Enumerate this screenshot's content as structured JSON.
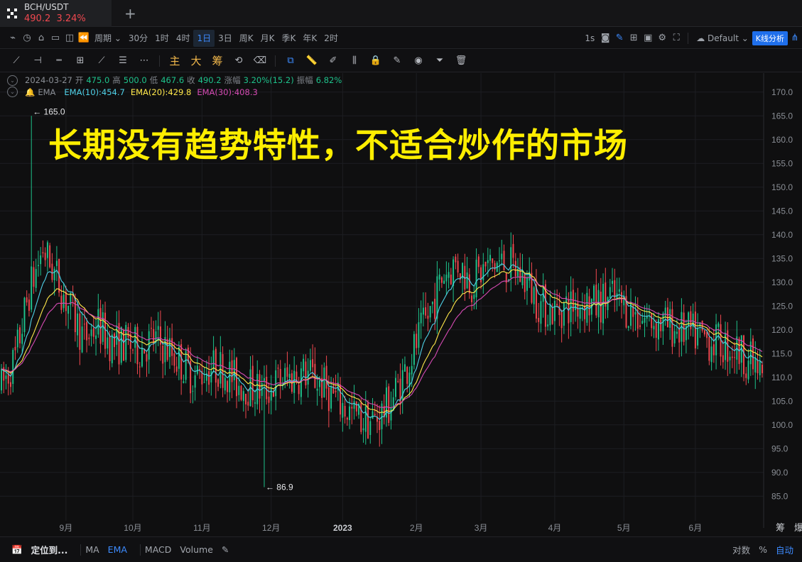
{
  "tab": {
    "symbol": "BCH/USDT",
    "price": "490.2",
    "change": "3.24%",
    "add": "+"
  },
  "toolbar": {
    "period_label": "周期",
    "intervals": [
      "30分",
      "1时",
      "4时",
      "1日",
      "3日",
      "周K",
      "月K",
      "季K",
      "年K",
      "2时"
    ],
    "active_interval": "1日",
    "refresh": "1s",
    "theme": "Default",
    "analysis_button": "K线分析"
  },
  "drawtools": {
    "main": "主",
    "big": "大",
    "chips": "筹"
  },
  "info": {
    "date": "2024-03-27",
    "open_label": "开",
    "open": "475.0",
    "high_label": "高",
    "high": "500.0",
    "low_label": "低",
    "low": "467.6",
    "close_label": "收",
    "close": "490.2",
    "change_label": "涨幅",
    "change": "3.20%(15.2)",
    "amp_label": "振幅",
    "amp": "6.82%"
  },
  "indicators": {
    "name": "EMA",
    "ema10": "EMA(10):454.7",
    "ema20": "EMA(20):429.8",
    "ema30": "EMA(30):408.3"
  },
  "headline": "长期没有趋势特性，不适合炒作的市场",
  "colors": {
    "up": "#1ec28b",
    "down": "#f0484f",
    "ema10": "#4fd1e8",
    "ema20": "#ffe84a",
    "ema30": "#d64bb4",
    "grid": "#1d1e22",
    "axis_text": "#8a8e95"
  },
  "chart_data": {
    "type": "candlestick",
    "ylim": [
      82.5,
      172.5
    ],
    "yticks": [
      170.0,
      165.0,
      160.0,
      155.0,
      150.0,
      145.0,
      140.0,
      135.0,
      130.0,
      125.0,
      120.0,
      115.0,
      110.0,
      105.0,
      100.0,
      95.0,
      90.0,
      85.0
    ],
    "x_months": [
      "9月",
      "10月",
      "11月",
      "12月",
      "2023",
      "2月",
      "3月",
      "4月",
      "5月",
      "6月"
    ],
    "month_start_index": [
      28,
      57,
      87,
      117,
      148,
      180,
      208,
      240,
      270,
      301
    ],
    "annotations": [
      {
        "text": "← 165.0",
        "value": 165.0,
        "index": 13
      },
      {
        "text": "← 86.9",
        "value": 86.9,
        "index": 114
      }
    ],
    "right_axis_labels": [
      "筹",
      "爆"
    ],
    "ema_path": [
      [
        0,
        108
      ],
      [
        6,
        114
      ],
      [
        12,
        128
      ],
      [
        18,
        137
      ],
      [
        24,
        131
      ],
      [
        30,
        124
      ],
      [
        36,
        118
      ],
      [
        42,
        121
      ],
      [
        48,
        117
      ],
      [
        54,
        117
      ],
      [
        60,
        116
      ],
      [
        66,
        118
      ],
      [
        72,
        116
      ],
      [
        78,
        113
      ],
      [
        84,
        110
      ],
      [
        90,
        112
      ],
      [
        96,
        112
      ],
      [
        102,
        109
      ],
      [
        108,
        108
      ],
      [
        114,
        107
      ],
      [
        120,
        109
      ],
      [
        126,
        110
      ],
      [
        132,
        111
      ],
      [
        138,
        109
      ],
      [
        144,
        106
      ],
      [
        150,
        103
      ],
      [
        156,
        101
      ],
      [
        162,
        101
      ],
      [
        168,
        104
      ],
      [
        174,
        110
      ],
      [
        180,
        117
      ],
      [
        186,
        124
      ],
      [
        192,
        132
      ],
      [
        198,
        134
      ],
      [
        204,
        130
      ],
      [
        210,
        133
      ],
      [
        216,
        134
      ],
      [
        222,
        133
      ],
      [
        228,
        130
      ],
      [
        234,
        125
      ],
      [
        240,
        124
      ],
      [
        246,
        125
      ],
      [
        252,
        126
      ],
      [
        258,
        125
      ],
      [
        264,
        127
      ],
      [
        270,
        125
      ],
      [
        276,
        123
      ],
      [
        282,
        122
      ],
      [
        288,
        121
      ],
      [
        294,
        120
      ],
      [
        300,
        119
      ],
      [
        306,
        118
      ],
      [
        312,
        117
      ],
      [
        318,
        116
      ],
      [
        324,
        114
      ],
      [
        330,
        110
      ]
    ],
    "candle_count": 331
  },
  "bottom": {
    "locate": "定位到...",
    "ma": "MA",
    "ema": "EMA",
    "macd": "MACD",
    "volume": "Volume",
    "log": "对数",
    "pct": "%",
    "auto": "自动"
  }
}
